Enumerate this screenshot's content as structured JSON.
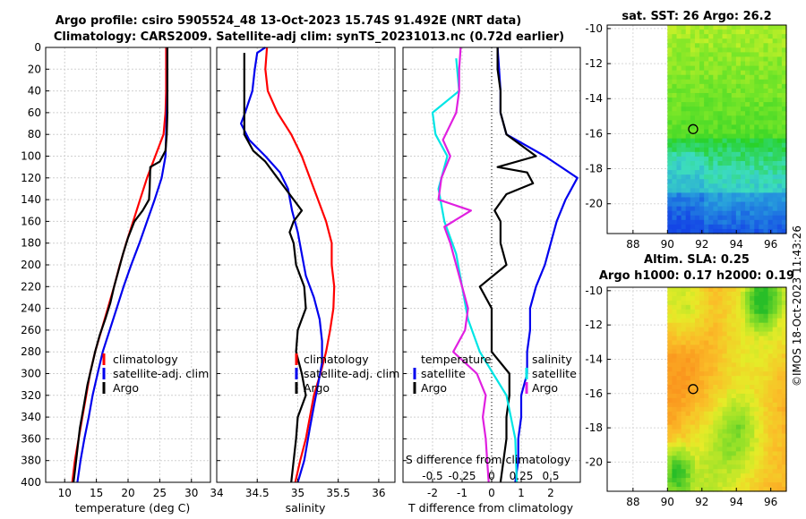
{
  "title": {
    "line1": "Argo profile: csiro 5905524_48 13-Oct-2023 15.74S 91.492E (NRT data)",
    "line2": "Climatology: CARS2009. Satellite-adj clim: synTS_20231013.nc (0.72d earlier)"
  },
  "colors": {
    "climatology": "#ff0000",
    "satellite": "#0000ee",
    "argo": "#000000",
    "temp_diff": "#00e5e5",
    "sal_diff": "#e020e0"
  },
  "chart_data": [
    {
      "type": "line",
      "id": "temperature",
      "xlabel": "temperature (deg C)",
      "xlim": [
        7,
        33
      ],
      "xticks": [
        10,
        15,
        20,
        25,
        30
      ],
      "ylim": [
        0,
        400
      ],
      "yticks": [
        0,
        20,
        40,
        60,
        80,
        100,
        120,
        140,
        160,
        180,
        200,
        220,
        240,
        260,
        280,
        300,
        320,
        340,
        360,
        380,
        400
      ],
      "legend": [
        "climatology",
        "satellite-adj. clim",
        "Argo"
      ],
      "series": [
        {
          "name": "climatology",
          "color": "#ff0000",
          "points": [
            [
              26.0,
              0
            ],
            [
              26.0,
              20
            ],
            [
              26.0,
              40
            ],
            [
              25.9,
              60
            ],
            [
              25.6,
              80
            ],
            [
              24.3,
              100
            ],
            [
              23.0,
              120
            ],
            [
              21.9,
              140
            ],
            [
              20.8,
              160
            ],
            [
              19.7,
              180
            ],
            [
              18.7,
              200
            ],
            [
              17.8,
              220
            ],
            [
              16.8,
              240
            ],
            [
              15.8,
              260
            ],
            [
              14.8,
              280
            ],
            [
              14.0,
              300
            ],
            [
              13.4,
              320
            ],
            [
              12.8,
              340
            ],
            [
              12.2,
              360
            ],
            [
              11.6,
              380
            ],
            [
              11.2,
              400
            ]
          ]
        },
        {
          "name": "satellite-adj. clim",
          "color": "#0000ee",
          "points": [
            [
              26.2,
              0
            ],
            [
              26.2,
              20
            ],
            [
              26.2,
              40
            ],
            [
              26.1,
              60
            ],
            [
              26.0,
              80
            ],
            [
              25.9,
              100
            ],
            [
              25.3,
              120
            ],
            [
              24.2,
              140
            ],
            [
              23.0,
              160
            ],
            [
              21.8,
              180
            ],
            [
              20.5,
              200
            ],
            [
              19.3,
              220
            ],
            [
              18.2,
              240
            ],
            [
              17.1,
              260
            ],
            [
              16.0,
              280
            ],
            [
              15.2,
              300
            ],
            [
              14.4,
              320
            ],
            [
              13.8,
              340
            ],
            [
              13.1,
              360
            ],
            [
              12.5,
              380
            ],
            [
              12.0,
              400
            ]
          ]
        },
        {
          "name": "Argo",
          "color": "#000000",
          "points": [
            [
              26.2,
              0
            ],
            [
              26.2,
              20
            ],
            [
              26.2,
              40
            ],
            [
              26.2,
              60
            ],
            [
              26.1,
              80
            ],
            [
              25.9,
              95
            ],
            [
              25.0,
              105
            ],
            [
              23.5,
              110
            ],
            [
              23.4,
              130
            ],
            [
              23.3,
              140
            ],
            [
              22.3,
              150
            ],
            [
              21.0,
              160
            ],
            [
              20.0,
              175
            ],
            [
              19.2,
              190
            ],
            [
              18.5,
              205
            ],
            [
              17.8,
              220
            ],
            [
              17.2,
              235
            ],
            [
              16.4,
              250
            ],
            [
              15.5,
              265
            ],
            [
              14.8,
              280
            ],
            [
              14.2,
              295
            ],
            [
              13.6,
              310
            ],
            [
              13.0,
              330
            ],
            [
              12.4,
              350
            ],
            [
              12.0,
              370
            ],
            [
              11.6,
              390
            ],
            [
              11.4,
              400
            ]
          ]
        }
      ]
    },
    {
      "type": "line",
      "id": "salinity",
      "xlabel": "salinity",
      "xlim": [
        34,
        36.2
      ],
      "xticks": [
        34,
        34.5,
        35,
        35.5,
        36
      ],
      "ylim": [
        0,
        400
      ],
      "legend": [
        "climatology",
        "satellite-adj. clim",
        "Argo"
      ],
      "series": [
        {
          "name": "climatology",
          "color": "#ff0000",
          "points": [
            [
              34.62,
              0
            ],
            [
              34.6,
              20
            ],
            [
              34.63,
              40
            ],
            [
              34.75,
              60
            ],
            [
              34.92,
              80
            ],
            [
              35.05,
              100
            ],
            [
              35.15,
              120
            ],
            [
              35.25,
              140
            ],
            [
              35.35,
              160
            ],
            [
              35.42,
              180
            ],
            [
              35.42,
              200
            ],
            [
              35.45,
              220
            ],
            [
              35.44,
              240
            ],
            [
              35.4,
              260
            ],
            [
              35.35,
              280
            ],
            [
              35.28,
              300
            ],
            [
              35.2,
              320
            ],
            [
              35.15,
              340
            ],
            [
              35.1,
              360
            ],
            [
              35.03,
              380
            ],
            [
              34.97,
              400
            ]
          ]
        },
        {
          "name": "satellite-adj. clim",
          "color": "#0000ee",
          "points": [
            [
              34.6,
              0
            ],
            [
              34.5,
              5
            ],
            [
              34.47,
              20
            ],
            [
              34.44,
              40
            ],
            [
              34.35,
              60
            ],
            [
              34.3,
              70
            ],
            [
              34.4,
              85
            ],
            [
              34.6,
              100
            ],
            [
              34.78,
              115
            ],
            [
              34.88,
              130
            ],
            [
              34.93,
              150
            ],
            [
              35.0,
              170
            ],
            [
              35.05,
              190
            ],
            [
              35.1,
              210
            ],
            [
              35.2,
              230
            ],
            [
              35.27,
              250
            ],
            [
              35.3,
              270
            ],
            [
              35.3,
              290
            ],
            [
              35.25,
              310
            ],
            [
              35.2,
              330
            ],
            [
              35.15,
              350
            ],
            [
              35.08,
              380
            ],
            [
              35.0,
              400
            ]
          ]
        },
        {
          "name": "Argo",
          "color": "#000000",
          "points": [
            [
              34.34,
              5
            ],
            [
              34.34,
              20
            ],
            [
              34.34,
              40
            ],
            [
              34.34,
              60
            ],
            [
              34.34,
              80
            ],
            [
              34.45,
              95
            ],
            [
              34.6,
              105
            ],
            [
              34.75,
              120
            ],
            [
              34.95,
              140
            ],
            [
              35.05,
              150
            ],
            [
              34.95,
              160
            ],
            [
              34.9,
              170
            ],
            [
              34.95,
              180
            ],
            [
              34.98,
              200
            ],
            [
              35.08,
              220
            ],
            [
              35.1,
              240
            ],
            [
              35.0,
              260
            ],
            [
              34.98,
              280
            ],
            [
              35.05,
              300
            ],
            [
              35.1,
              320
            ],
            [
              35.0,
              340
            ],
            [
              34.98,
              360
            ],
            [
              34.95,
              380
            ],
            [
              34.92,
              400
            ]
          ]
        }
      ]
    },
    {
      "type": "line",
      "id": "differences",
      "xlabel": "T difference from climatology",
      "xlabel2": "S difference from climatology",
      "xlim": [
        -3,
        3
      ],
      "xticks": [
        -2,
        -1,
        0,
        1,
        2
      ],
      "xticklabels": [
        "-2",
        "-1",
        "0",
        "1",
        "2"
      ],
      "xticks2": [
        -0.5,
        -0.25,
        0,
        0.25,
        0.5
      ],
      "xticklabels2": [
        "-0.5",
        "-0.25",
        "0",
        "0.25",
        "0.5"
      ],
      "ylim": [
        0,
        400
      ],
      "legend_left_title": "temperature",
      "legend_right_title": "salinity",
      "legend_items": [
        "satellite",
        "Argo",
        "satellite",
        "Argo"
      ],
      "series": [
        {
          "name": "T satellite",
          "color": "#0000ee",
          "points": [
            [
              0.2,
              0
            ],
            [
              0.25,
              20
            ],
            [
              0.3,
              40
            ],
            [
              0.3,
              60
            ],
            [
              0.5,
              80
            ],
            [
              1.8,
              100
            ],
            [
              2.9,
              120
            ],
            [
              2.5,
              140
            ],
            [
              2.2,
              160
            ],
            [
              2.0,
              180
            ],
            [
              1.8,
              200
            ],
            [
              1.5,
              220
            ],
            [
              1.3,
              240
            ],
            [
              1.3,
              260
            ],
            [
              1.2,
              280
            ],
            [
              1.2,
              300
            ],
            [
              1.0,
              320
            ],
            [
              1.0,
              340
            ],
            [
              0.9,
              360
            ],
            [
              0.9,
              380
            ],
            [
              0.8,
              400
            ]
          ]
        },
        {
          "name": "T Argo",
          "color": "#000000",
          "points": [
            [
              0.2,
              0
            ],
            [
              0.2,
              20
            ],
            [
              0.3,
              40
            ],
            [
              0.3,
              60
            ],
            [
              0.5,
              80
            ],
            [
              1.5,
              100
            ],
            [
              0.2,
              110
            ],
            [
              1.2,
              115
            ],
            [
              1.4,
              125
            ],
            [
              0.5,
              135
            ],
            [
              0.1,
              150
            ],
            [
              0.3,
              160
            ],
            [
              0.3,
              180
            ],
            [
              0.5,
              200
            ],
            [
              -0.4,
              220
            ],
            [
              0,
              240
            ],
            [
              0,
              260
            ],
            [
              0,
              280
            ],
            [
              0.6,
              300
            ],
            [
              0.6,
              320
            ],
            [
              0.5,
              340
            ],
            [
              0.5,
              360
            ],
            [
              0.4,
              380
            ],
            [
              0.3,
              400
            ]
          ]
        },
        {
          "name": "S satellite",
          "color": "#00e5e5",
          "points": [
            [
              -1.2,
              10
            ],
            [
              -1.1,
              40
            ],
            [
              -2.0,
              60
            ],
            [
              -1.9,
              80
            ],
            [
              -1.5,
              100
            ],
            [
              -1.8,
              130
            ],
            [
              -1.6,
              160
            ],
            [
              -1.2,
              190
            ],
            [
              -1.0,
              220
            ],
            [
              -0.8,
              250
            ],
            [
              -0.4,
              280
            ],
            [
              0.05,
              300
            ],
            [
              0.5,
              320
            ],
            [
              0.8,
              360
            ],
            [
              0.85,
              400
            ]
          ]
        },
        {
          "name": "S Argo",
          "color": "#e020e0",
          "points": [
            [
              -1.05,
              0
            ],
            [
              -1.1,
              20
            ],
            [
              -1.1,
              40
            ],
            [
              -1.2,
              60
            ],
            [
              -1.65,
              85
            ],
            [
              -1.4,
              100
            ],
            [
              -1.7,
              120
            ],
            [
              -1.8,
              140
            ],
            [
              -0.7,
              150
            ],
            [
              -1.6,
              165
            ],
            [
              -1.4,
              180
            ],
            [
              -1.2,
              200
            ],
            [
              -1.0,
              220
            ],
            [
              -0.8,
              240
            ],
            [
              -0.9,
              260
            ],
            [
              -1.3,
              280
            ],
            [
              -0.5,
              300
            ],
            [
              -0.2,
              320
            ],
            [
              -0.3,
              340
            ],
            [
              -0.2,
              360
            ],
            [
              -0.15,
              380
            ],
            [
              -0.1,
              400
            ]
          ]
        }
      ]
    },
    {
      "type": "heatmap",
      "id": "sst_map",
      "title": "sat. SST: 26 Argo: 26.2",
      "xlim": [
        86.5,
        96.9
      ],
      "ylim": [
        -21.7,
        -9.8
      ],
      "xticks": [
        88,
        90,
        92,
        94,
        96
      ],
      "yticks": [
        -10,
        -12,
        -14,
        -16,
        -18,
        -20
      ],
      "data_extent_x": [
        90,
        96.9
      ],
      "marker": {
        "lon": 91.49,
        "lat": -15.74
      }
    },
    {
      "type": "heatmap",
      "id": "sla_map",
      "title_line1": "Altim. SLA: 0.25",
      "title_line2": "Argo h1000: 0.17 h2000: 0.19",
      "xlim": [
        86.5,
        96.9
      ],
      "ylim": [
        -21.7,
        -9.8
      ],
      "xticks": [
        88,
        90,
        92,
        94,
        96
      ],
      "yticks": [
        -10,
        -12,
        -14,
        -16,
        -18,
        -20
      ],
      "data_extent_x": [
        90,
        96.9
      ],
      "marker": {
        "lon": 91.49,
        "lat": -15.74
      }
    }
  ],
  "credit": "©IMOS 18-Oct-2023 11:43:26"
}
